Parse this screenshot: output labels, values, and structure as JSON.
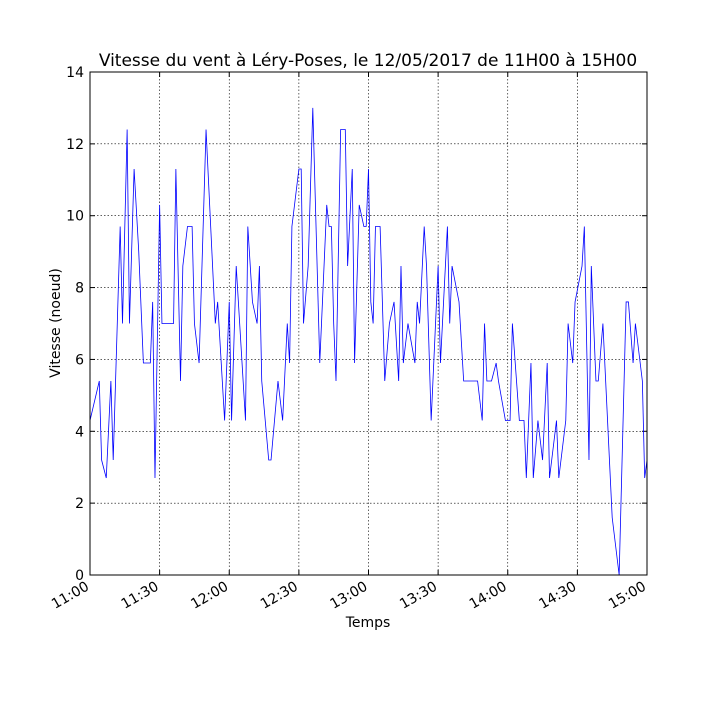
{
  "chart_data": {
    "type": "line",
    "title": "Vitesse du vent à Léry-Poses, le 12/05/2017 de 11H00 à 15H00",
    "xlabel": "Temps",
    "ylabel": "Vitesse (noeud)",
    "x": [
      "11:00",
      "11:04",
      "11:05",
      "11:07",
      "11:09",
      "11:10",
      "11:13",
      "11:14",
      "11:16",
      "11:17",
      "11:19",
      "11:21",
      "11:23",
      "11:26",
      "11:27",
      "11:28",
      "11:30",
      "11:31",
      "11:36",
      "11:37",
      "11:39",
      "11:40",
      "11:42",
      "11:44",
      "11:45",
      "11:47",
      "11:50",
      "11:52",
      "11:54",
      "11:55",
      "11:58",
      "12:00",
      "12:01",
      "12:03",
      "12:07",
      "12:08",
      "12:10",
      "12:12",
      "12:13",
      "12:14",
      "12:17",
      "12:18",
      "12:21",
      "12:23",
      "12:25",
      "12:26",
      "12:27",
      "12:30",
      "12:31",
      "12:32",
      "12:34",
      "12:36",
      "12:39",
      "12:42",
      "12:43",
      "12:44",
      "12:45",
      "12:46",
      "12:48",
      "12:50",
      "12:51",
      "12:53",
      "12:54",
      "12:56",
      "12:58",
      "12:59",
      "13:00",
      "13:01",
      "13:02",
      "13:03",
      "13:05",
      "13:07",
      "13:09",
      "13:11",
      "13:13",
      "13:14",
      "13:15",
      "13:17",
      "13:20",
      "13:21",
      "13:22",
      "13:24",
      "13:25",
      "13:27",
      "13:30",
      "13:31",
      "13:34",
      "13:35",
      "13:36",
      "13:39",
      "13:41",
      "13:47",
      "13:49",
      "13:50",
      "13:51",
      "13:53",
      "13:55",
      "13:56",
      "13:59",
      "14:01",
      "14:02",
      "14:05",
      "14:07",
      "14:08",
      "14:10",
      "14:11",
      "14:13",
      "14:15",
      "14:17",
      "14:18",
      "14:21",
      "14:22",
      "14:25",
      "14:26",
      "14:28",
      "14:29",
      "14:32",
      "14:33",
      "14:35",
      "14:36",
      "14:38",
      "14:39",
      "14:41",
      "14:45",
      "14:48",
      "14:51",
      "14:52",
      "14:54",
      "14:55",
      "14:58",
      "14:59",
      "15:00"
    ],
    "series": [
      {
        "name": "Vitesse",
        "color": "#0000ff",
        "values": [
          4.3,
          5.4,
          3.2,
          2.7,
          5.4,
          3.2,
          9.7,
          7.0,
          12.4,
          7.0,
          11.3,
          9.0,
          5.9,
          5.9,
          7.6,
          2.7,
          10.3,
          7.0,
          7.0,
          11.3,
          5.4,
          8.6,
          9.7,
          9.7,
          7.0,
          5.9,
          12.4,
          9.7,
          7.0,
          7.6,
          4.3,
          7.6,
          4.3,
          8.6,
          4.3,
          9.7,
          7.6,
          7.0,
          8.6,
          5.4,
          3.2,
          3.2,
          5.4,
          4.3,
          7.0,
          5.9,
          9.7,
          11.3,
          11.3,
          7.0,
          8.6,
          13.0,
          5.9,
          10.3,
          9.7,
          9.7,
          7.0,
          5.4,
          12.4,
          12.4,
          8.6,
          11.3,
          5.9,
          10.3,
          9.7,
          9.7,
          11.3,
          7.6,
          7.0,
          9.7,
          9.7,
          5.4,
          7.0,
          7.6,
          5.4,
          8.6,
          5.9,
          7.0,
          5.9,
          7.6,
          7.0,
          9.7,
          8.6,
          4.3,
          8.6,
          5.9,
          9.7,
          7.0,
          8.6,
          7.6,
          5.4,
          5.4,
          4.3,
          7.0,
          5.4,
          5.4,
          5.9,
          5.4,
          4.3,
          4.3,
          7.0,
          4.3,
          4.3,
          2.7,
          5.9,
          2.7,
          4.3,
          3.2,
          5.9,
          2.7,
          4.3,
          2.7,
          4.3,
          7.0,
          5.9,
          7.6,
          8.6,
          9.7,
          3.2,
          8.6,
          5.4,
          5.4,
          7.0,
          1.6,
          0.0,
          7.6,
          7.6,
          5.9,
          7.0,
          5.4,
          2.7,
          3.2
        ]
      }
    ],
    "xlim": [
      "11:00",
      "15:00"
    ],
    "xticks": [
      "11:00",
      "11:30",
      "12:00",
      "12:30",
      "13:00",
      "13:30",
      "14:00",
      "14:30",
      "15:00"
    ],
    "ylim": [
      0,
      14
    ],
    "yticks": [
      0,
      2,
      4,
      6,
      8,
      10,
      12,
      14
    ],
    "grid": true
  }
}
